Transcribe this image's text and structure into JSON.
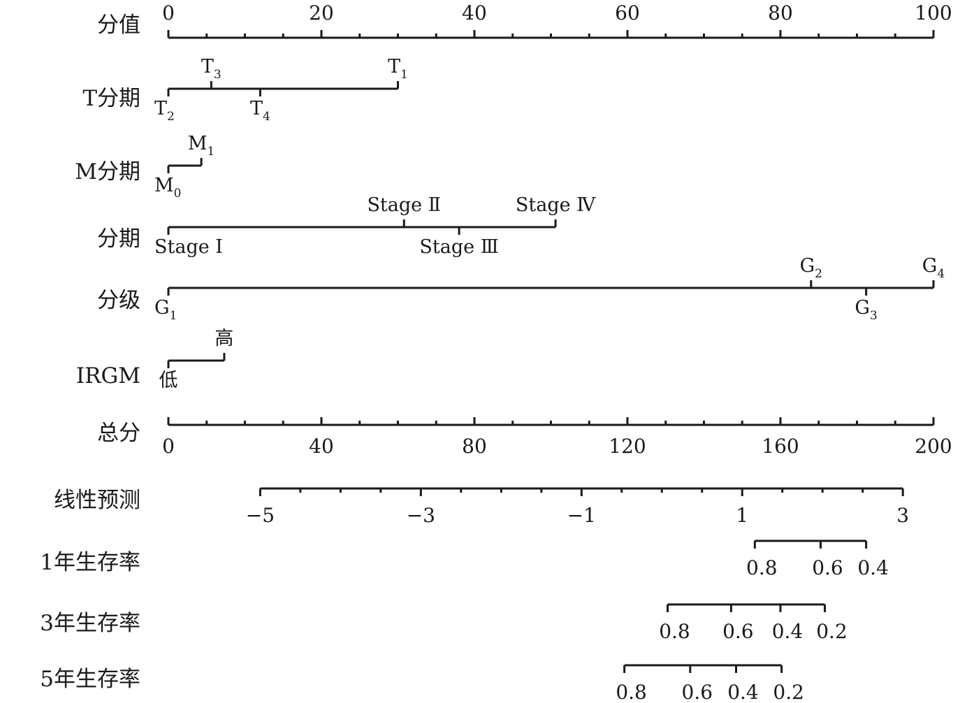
{
  "chart_data": {
    "type": "nomogram",
    "rows": [
      {
        "id": "points",
        "label": "分值",
        "kind": "scale",
        "min": 0,
        "max": 100,
        "major": [
          0,
          20,
          40,
          60,
          80,
          100
        ],
        "minor_step": 5,
        "labels_above": true
      },
      {
        "id": "t_stage",
        "label": "T分期",
        "kind": "factor",
        "levels": [
          {
            "name": "T",
            "sub": "2",
            "points": 0,
            "above": false
          },
          {
            "name": "T",
            "sub": "3",
            "points": 5.6,
            "above": true
          },
          {
            "name": "T",
            "sub": "4",
            "points": 12,
            "above": false
          },
          {
            "name": "T",
            "sub": "1",
            "points": 30,
            "above": true
          }
        ]
      },
      {
        "id": "m_stage",
        "label": "M分期",
        "kind": "factor",
        "levels": [
          {
            "name": "M",
            "sub": "0",
            "points": 0,
            "above": false
          },
          {
            "name": "M",
            "sub": "1",
            "points": 4.3,
            "above": true
          }
        ]
      },
      {
        "id": "stage",
        "label": "分期",
        "kind": "factor",
        "levels": [
          {
            "name": "Stage Ⅰ",
            "sub": "",
            "points": 0,
            "above": false
          },
          {
            "name": "Stage Ⅱ",
            "sub": "",
            "points": 30.8,
            "above": true
          },
          {
            "name": "Stage Ⅲ",
            "sub": "",
            "points": 38,
            "above": false
          },
          {
            "name": "Stage Ⅳ",
            "sub": "",
            "points": 50.6,
            "above": true
          }
        ]
      },
      {
        "id": "grade",
        "label": "分级",
        "kind": "factor",
        "levels": [
          {
            "name": "G",
            "sub": "1",
            "points": 0,
            "above": false
          },
          {
            "name": "G",
            "sub": "2",
            "points": 84,
            "above": true
          },
          {
            "name": "G",
            "sub": "3",
            "points": 91.2,
            "above": false
          },
          {
            "name": "G",
            "sub": "4",
            "points": 100,
            "above": true
          }
        ]
      },
      {
        "id": "irgm",
        "label": "IRGM",
        "kind": "factor",
        "levels": [
          {
            "name": "低",
            "sub": "",
            "points": 0,
            "above": false
          },
          {
            "name": "高",
            "sub": "",
            "points": 7.3,
            "above": true
          }
        ]
      },
      {
        "id": "total",
        "label": "总分",
        "kind": "scale",
        "min": 0,
        "max": 200,
        "major": [
          0,
          40,
          80,
          120,
          160,
          200
        ],
        "minor_step": 10,
        "labels_above": false
      },
      {
        "id": "linear",
        "label": "线性预测",
        "kind": "linear",
        "min": -5,
        "max": 3,
        "total_at_min": 24,
        "total_at_max": 192,
        "major": [
          -5,
          -3,
          -1,
          1,
          3
        ],
        "major_labels": [
          "−5",
          "−3",
          "−1",
          "1",
          "3"
        ],
        "minor_step": 0.5
      },
      {
        "id": "surv1",
        "label": "1年生存率",
        "kind": "survival",
        "ticks": [
          {
            "value": "0.8",
            "total": 153.3
          },
          {
            "value": "0.6",
            "total": 170.5
          },
          {
            "value": "0.4",
            "total": 182.4
          }
        ]
      },
      {
        "id": "surv3",
        "label": "3年生存率",
        "kind": "survival",
        "ticks": [
          {
            "value": "0.8",
            "total": 130.5
          },
          {
            "value": "0.6",
            "total": 147.1
          },
          {
            "value": "0.4",
            "total": 160
          },
          {
            "value": "0.2",
            "total": 171.6
          }
        ]
      },
      {
        "id": "surv5",
        "label": "5年生存率",
        "kind": "survival",
        "ticks": [
          {
            "value": "0.8",
            "total": 119.2
          },
          {
            "value": "0.6",
            "total": 136.4
          },
          {
            "value": "0.4",
            "total": 148.4
          },
          {
            "value": "0.2",
            "total": 160.3
          }
        ]
      }
    ]
  }
}
